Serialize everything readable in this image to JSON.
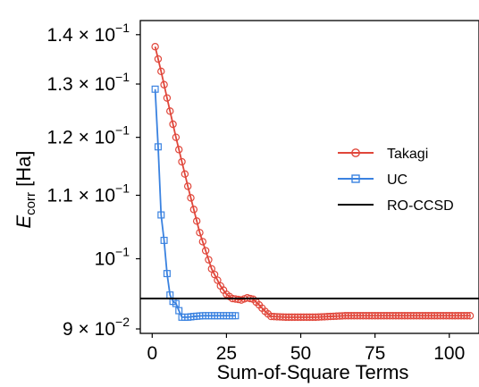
{
  "chart_data": {
    "type": "line",
    "xlabel": "Sum-of-Square Terms",
    "ylabel_main": "E",
    "ylabel_sub": "corr",
    "ylabel_unit": " [Ha]",
    "yscale": "log",
    "xlim": [
      -4,
      110
    ],
    "ylim": [
      0.0894,
      0.143
    ],
    "x_ticks": [
      {
        "value": 0,
        "label": "0"
      },
      {
        "value": 25,
        "label": "25"
      },
      {
        "value": 50,
        "label": "50"
      },
      {
        "value": 75,
        "label": "75"
      },
      {
        "value": 100,
        "label": "100"
      }
    ],
    "y_ticks": [
      {
        "value": 0.09,
        "mant": "9",
        "times": " × ",
        "base": "10",
        "exp": "−2"
      },
      {
        "value": 0.1,
        "mant": "",
        "times": "",
        "base": "10",
        "exp": "−1"
      },
      {
        "value": 0.11,
        "mant": "1.1",
        "times": " × ",
        "base": "10",
        "exp": "−1"
      },
      {
        "value": 0.12,
        "mant": "1.2",
        "times": " × ",
        "base": "10",
        "exp": "−1"
      },
      {
        "value": 0.13,
        "mant": "1.3",
        "times": " × ",
        "base": "10",
        "exp": "−1"
      },
      {
        "value": 0.14,
        "mant": "1.4",
        "times": " × ",
        "base": "10",
        "exp": "−1"
      }
    ],
    "grid": false,
    "legend_position": "right",
    "series": [
      {
        "name": "Takagi",
        "color": "#e0463a",
        "marker": "circle",
        "knots": [
          [
            1,
            0.1375
          ],
          [
            3,
            0.1325
          ],
          [
            5,
            0.1273
          ],
          [
            8,
            0.12
          ],
          [
            12,
            0.1115
          ],
          [
            16,
            0.104
          ],
          [
            20,
            0.0985
          ],
          [
            23,
            0.096
          ],
          [
            25,
            0.0948
          ],
          [
            27,
            0.0942
          ],
          [
            30,
            0.094
          ],
          [
            32,
            0.0943
          ],
          [
            34,
            0.0941
          ],
          [
            36,
            0.0933
          ],
          [
            38,
            0.0924
          ],
          [
            40,
            0.0917
          ],
          [
            45,
            0.0916
          ],
          [
            55,
            0.0916
          ],
          [
            65,
            0.0918
          ],
          [
            80,
            0.0918
          ],
          [
            107,
            0.0918
          ]
        ]
      },
      {
        "name": "UC",
        "color": "#3a82e0",
        "marker": "square",
        "knots": [
          [
            1,
            0.129
          ],
          [
            2,
            0.1183
          ],
          [
            3,
            0.1068
          ],
          [
            4,
            0.1028
          ],
          [
            5,
            0.0978
          ],
          [
            6,
            0.0947
          ],
          [
            7,
            0.0938
          ],
          [
            8,
            0.0935
          ],
          [
            9,
            0.0925
          ],
          [
            10,
            0.0916
          ],
          [
            11,
            0.0916
          ],
          [
            12,
            0.0916
          ],
          [
            14,
            0.0917
          ],
          [
            17,
            0.0918
          ],
          [
            20,
            0.0918
          ],
          [
            24,
            0.0918
          ],
          [
            28,
            0.0918
          ]
        ]
      },
      {
        "name": "RO-CCSD",
        "color": "#000000",
        "marker": "none",
        "value": 0.0942
      }
    ]
  }
}
